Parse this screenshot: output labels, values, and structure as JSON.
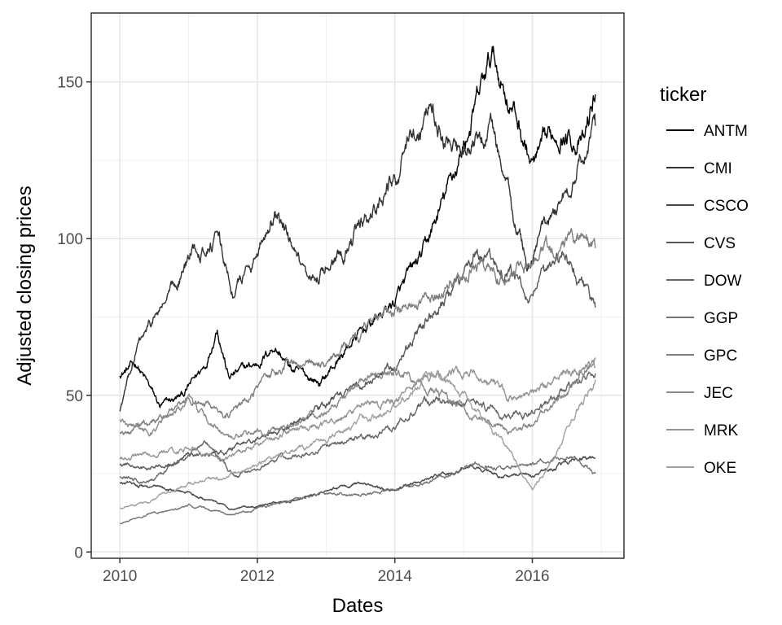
{
  "chart_data": {
    "type": "line",
    "xlabel": "Dates",
    "ylabel": "Adjusted closing prices",
    "legend_title": "ticker",
    "legend_position": "right",
    "grid": true,
    "x_range": [
      "2009-08",
      "2017-05"
    ],
    "y_range": [
      -2,
      172
    ],
    "x_ticks": [
      {
        "value": "2010-01",
        "label": "2010"
      },
      {
        "value": "2012-01",
        "label": "2012"
      },
      {
        "value": "2014-01",
        "label": "2014"
      },
      {
        "value": "2016-01",
        "label": "2016"
      }
    ],
    "y_ticks": [
      {
        "value": 0,
        "label": "0"
      },
      {
        "value": 50,
        "label": "50"
      },
      {
        "value": 100,
        "label": "100"
      },
      {
        "value": 150,
        "label": "150"
      }
    ],
    "series": [
      {
        "name": "ANTM",
        "color": "#000000",
        "points": [
          [
            "2010-01",
            57
          ],
          [
            "2010-04",
            60
          ],
          [
            "2010-08",
            46
          ],
          [
            "2010-12",
            50
          ],
          [
            "2011-04",
            60
          ],
          [
            "2011-06",
            73
          ],
          [
            "2011-08",
            56
          ],
          [
            "2012-01",
            60
          ],
          [
            "2012-04",
            66
          ],
          [
            "2012-07",
            58
          ],
          [
            "2012-12",
            54
          ],
          [
            "2013-06",
            68
          ],
          [
            "2014-01",
            80
          ],
          [
            "2014-06",
            95
          ],
          [
            "2014-12",
            124
          ],
          [
            "2015-06",
            158
          ],
          [
            "2015-10",
            140
          ],
          [
            "2016-01",
            123
          ],
          [
            "2016-06",
            135
          ],
          [
            "2016-10",
            130
          ],
          [
            "2016-12",
            146
          ]
        ]
      },
      {
        "name": "CMI",
        "color": "#333333",
        "points": [
          [
            "2010-01",
            45
          ],
          [
            "2010-04",
            65
          ],
          [
            "2010-10",
            83
          ],
          [
            "2011-02",
            97
          ],
          [
            "2011-06",
            100
          ],
          [
            "2011-09",
            82
          ],
          [
            "2012-01",
            97
          ],
          [
            "2012-04",
            110
          ],
          [
            "2012-10",
            82
          ],
          [
            "2013-02",
            95
          ],
          [
            "2013-07",
            103
          ],
          [
            "2014-01",
            120
          ],
          [
            "2014-07",
            143
          ],
          [
            "2014-12",
            125
          ],
          [
            "2015-06",
            134
          ],
          [
            "2015-12",
            92
          ],
          [
            "2016-06",
            112
          ],
          [
            "2016-12",
            136
          ]
        ]
      },
      {
        "name": "CSCO",
        "color": "#484848",
        "points": [
          [
            "2010-01",
            22
          ],
          [
            "2010-06",
            21
          ],
          [
            "2011-01",
            19
          ],
          [
            "2011-08",
            14
          ],
          [
            "2012-06",
            16
          ],
          [
            "2013-01",
            19
          ],
          [
            "2013-06",
            22
          ],
          [
            "2014-01",
            20
          ],
          [
            "2014-06",
            23
          ],
          [
            "2015-03",
            27
          ],
          [
            "2015-08",
            24
          ],
          [
            "2016-01",
            24
          ],
          [
            "2016-06",
            28
          ],
          [
            "2016-12",
            30
          ]
        ]
      },
      {
        "name": "CVS",
        "color": "#585858",
        "points": [
          [
            "2010-01",
            28
          ],
          [
            "2010-06",
            26
          ],
          [
            "2011-01",
            31
          ],
          [
            "2011-08",
            32
          ],
          [
            "2012-06",
            40
          ],
          [
            "2013-06",
            52
          ],
          [
            "2014-01",
            60
          ],
          [
            "2014-07",
            75
          ],
          [
            "2015-03",
            95
          ],
          [
            "2015-08",
            90
          ],
          [
            "2016-01",
            82
          ],
          [
            "2016-07",
            95
          ],
          [
            "2016-12",
            78
          ]
        ]
      },
      {
        "name": "DOW",
        "color": "#666666",
        "points": [
          [
            "2010-01",
            24
          ],
          [
            "2010-06",
            22
          ],
          [
            "2011-04",
            35
          ],
          [
            "2011-09",
            24
          ],
          [
            "2012-06",
            30
          ],
          [
            "2013-06",
            36
          ],
          [
            "2014-01",
            40
          ],
          [
            "2014-06",
            48
          ],
          [
            "2015-03",
            47
          ],
          [
            "2015-09",
            44
          ],
          [
            "2016-01",
            45
          ],
          [
            "2016-06",
            50
          ],
          [
            "2016-12",
            57
          ]
        ]
      },
      {
        "name": "GGP",
        "color": "#737373",
        "points": [
          [
            "2010-01",
            9
          ],
          [
            "2010-06",
            12
          ],
          [
            "2011-01",
            15
          ],
          [
            "2011-09",
            12
          ],
          [
            "2012-06",
            16
          ],
          [
            "2013-01",
            19
          ],
          [
            "2013-06",
            18
          ],
          [
            "2014-01",
            20
          ],
          [
            "2014-06",
            22
          ],
          [
            "2015-03",
            28
          ],
          [
            "2015-08",
            26
          ],
          [
            "2016-01",
            28
          ],
          [
            "2016-07",
            31
          ],
          [
            "2016-12",
            25
          ]
        ]
      },
      {
        "name": "GPC",
        "color": "#7f7f7f",
        "points": [
          [
            "2010-01",
            38
          ],
          [
            "2010-06",
            41
          ],
          [
            "2011-01",
            49
          ],
          [
            "2011-08",
            44
          ],
          [
            "2012-06",
            60
          ],
          [
            "2013-01",
            58
          ],
          [
            "2013-07",
            70
          ],
          [
            "2014-01",
            78
          ],
          [
            "2014-07",
            82
          ],
          [
            "2015-03",
            92
          ],
          [
            "2015-08",
            88
          ],
          [
            "2016-01",
            93
          ],
          [
            "2016-07",
            100
          ],
          [
            "2016-12",
            97
          ]
        ]
      },
      {
        "name": "JEC",
        "color": "#8a8a8a",
        "points": [
          [
            "2010-01",
            42
          ],
          [
            "2010-06",
            38
          ],
          [
            "2011-01",
            48
          ],
          [
            "2011-08",
            36
          ],
          [
            "2012-06",
            40
          ],
          [
            "2013-01",
            44
          ],
          [
            "2013-07",
            55
          ],
          [
            "2014-01",
            58
          ],
          [
            "2014-06",
            55
          ],
          [
            "2015-03",
            42
          ],
          [
            "2015-09",
            38
          ],
          [
            "2016-01",
            40
          ],
          [
            "2016-07",
            52
          ],
          [
            "2016-12",
            62
          ]
        ]
      },
      {
        "name": "MRK",
        "color": "#959595",
        "points": [
          [
            "2010-01",
            30
          ],
          [
            "2010-06",
            31
          ],
          [
            "2011-01",
            33
          ],
          [
            "2011-08",
            30
          ],
          [
            "2012-06",
            38
          ],
          [
            "2013-01",
            41
          ],
          [
            "2013-06",
            45
          ],
          [
            "2014-01",
            49
          ],
          [
            "2014-06",
            56
          ],
          [
            "2015-03",
            57
          ],
          [
            "2015-09",
            50
          ],
          [
            "2016-01",
            50
          ],
          [
            "2016-07",
            57
          ],
          [
            "2016-12",
            59
          ]
        ]
      },
      {
        "name": "OKE",
        "color": "#a1a1a1",
        "points": [
          [
            "2010-01",
            14
          ],
          [
            "2010-06",
            16
          ],
          [
            "2011-01",
            22
          ],
          [
            "2011-08",
            24
          ],
          [
            "2012-06",
            32
          ],
          [
            "2013-01",
            35
          ],
          [
            "2013-07",
            42
          ],
          [
            "2014-01",
            45
          ],
          [
            "2014-07",
            58
          ],
          [
            "2015-03",
            46
          ],
          [
            "2015-09",
            32
          ],
          [
            "2016-01",
            20
          ],
          [
            "2016-04",
            28
          ],
          [
            "2016-08",
            42
          ],
          [
            "2016-12",
            55
          ]
        ]
      }
    ]
  }
}
